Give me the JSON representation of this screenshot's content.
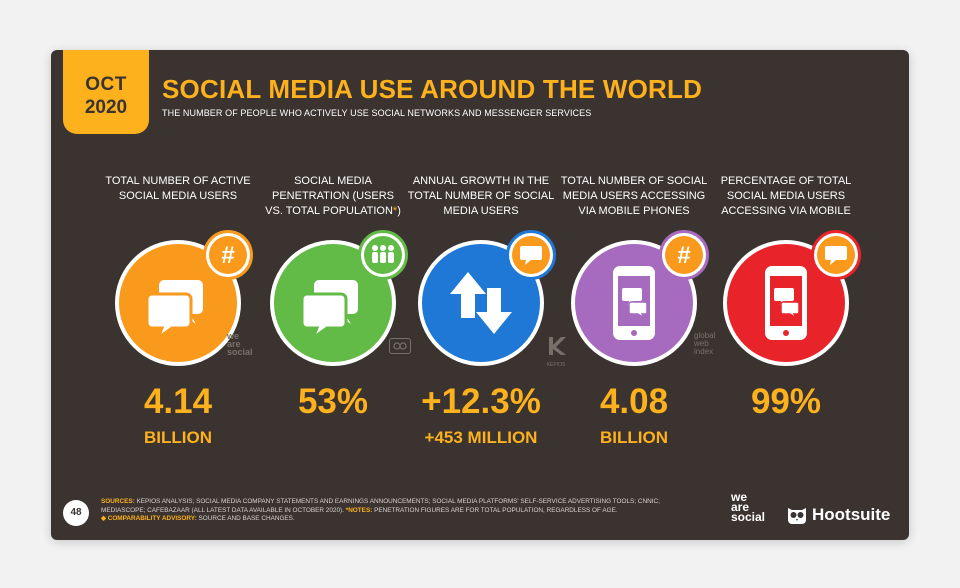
{
  "header": {
    "date_month": "OCT",
    "date_year": "2020",
    "title": "SOCIAL MEDIA USE AROUND THE WORLD",
    "subtitle": "THE NUMBER OF PEOPLE WHO ACTIVELY USE SOCIAL NETWORKS AND MESSENGER SERVICES"
  },
  "metrics": [
    {
      "label": "TOTAL NUMBER OF ACTIVE SOCIAL MEDIA USERS",
      "value": "4.14",
      "unit": "BILLION",
      "color": "#f99a1c",
      "icon": "speech-bubbles-icon",
      "badge_icon": "hashtag-icon"
    },
    {
      "label": "SOCIAL MEDIA PENETRATION (USERS vs. TOTAL POPULATION*)",
      "value": "53%",
      "unit": "",
      "color": "#62bb46",
      "icon": "speech-bubbles-icon",
      "badge_icon": "people-icon"
    },
    {
      "label": "ANNUAL GROWTH IN THE TOTAL NUMBER OF SOCIAL MEDIA USERS",
      "value": "+12.3%",
      "unit": "+453 MILLION",
      "color": "#1f78d6",
      "icon": "up-down-arrows-icon",
      "badge_icon": "chat-bubble-icon"
    },
    {
      "label": "TOTAL NUMBER OF SOCIAL MEDIA USERS ACCESSING VIA MOBILE PHONES",
      "value": "4.08",
      "unit": "BILLION",
      "color": "#a66bbf",
      "icon": "mobile-phone-icon",
      "badge_icon": "hashtag-icon"
    },
    {
      "label": "PERCENTAGE OF TOTAL SOCIAL MEDIA USERS ACCESSING VIA MOBILE",
      "value": "99%",
      "unit": "",
      "color": "#e8242a",
      "icon": "mobile-phone-icon",
      "badge_icon": "chat-bubble-icon"
    }
  ],
  "partner_logos": {
    "was_small": [
      "we",
      "are",
      "social"
    ],
    "gwi_small": [
      "global",
      "web",
      "index"
    ],
    "kepios_small": "KEPIOS"
  },
  "footer": {
    "page_number": "48",
    "sources_label": "SOURCES:",
    "sources_text": "KEPIOS ANALYSIS; SOCIAL MEDIA COMPANY STATEMENTS AND EARNINGS ANNOUNCEMENTS; SOCIAL MEDIA PLATFORMS' SELF-SERVICE ADVERTISING TOOLS; CNNIC; MEDIASCOPE; CAFEBAZAAR (ALL LATEST DATA AVAILABLE IN OCTOBER 2020).",
    "notes_label": "*NOTES:",
    "notes_text": "PENETRATION FIGURES ARE FOR TOTAL POPULATION, REGARDLESS OF AGE.",
    "advisory_label": "COMPARABILITY ADVISORY:",
    "advisory_text": "SOURCE AND BASE CHANGES.",
    "logo_was": [
      "we",
      "are",
      "social"
    ],
    "logo_hootsuite": "Hootsuite"
  },
  "colors": {
    "background": "#3a3330",
    "accent": "#fcb11d"
  }
}
